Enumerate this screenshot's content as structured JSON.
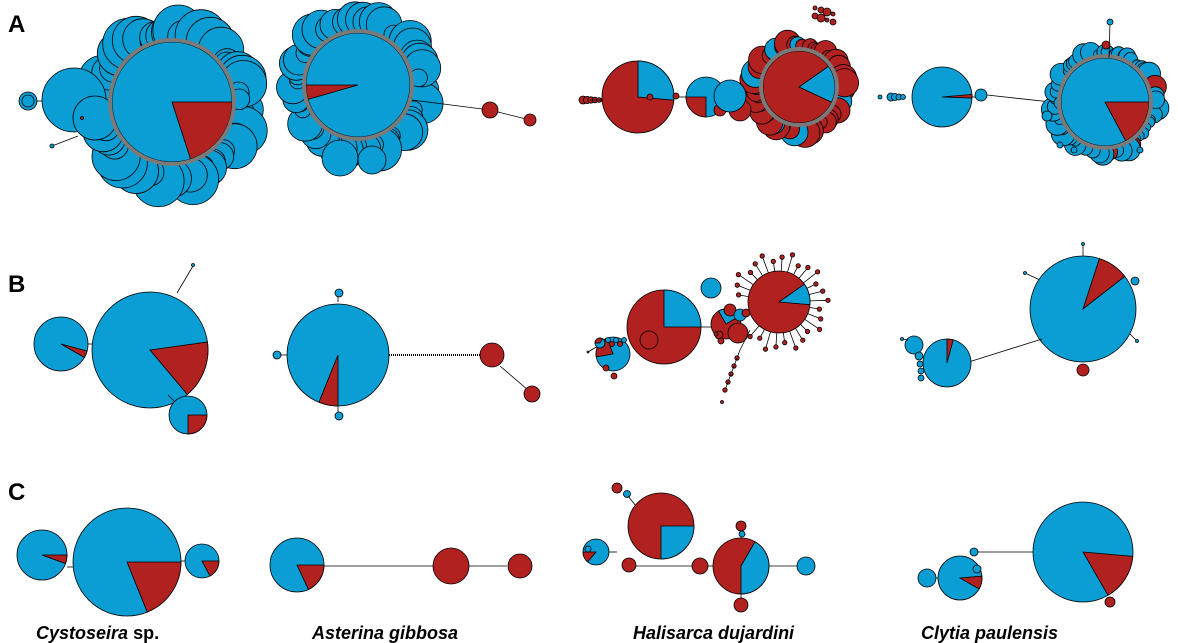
{
  "figure": {
    "rows": [
      {
        "label": "A"
      },
      {
        "label": "B"
      },
      {
        "label": "C"
      }
    ],
    "species": [
      {
        "name": "Cystoseira",
        "suffix": " sp."
      },
      {
        "name": "Asterina gibbosa",
        "suffix": ""
      },
      {
        "name": "Halisarca dujardini",
        "suffix": ""
      },
      {
        "name": "Clytia paulensis",
        "suffix": ""
      }
    ],
    "colors": {
      "blue": "#0a9ed5",
      "red": "#b0211f",
      "ring": "#7a7a7a",
      "outline": "#000000",
      "background": "#ffffff"
    }
  }
}
